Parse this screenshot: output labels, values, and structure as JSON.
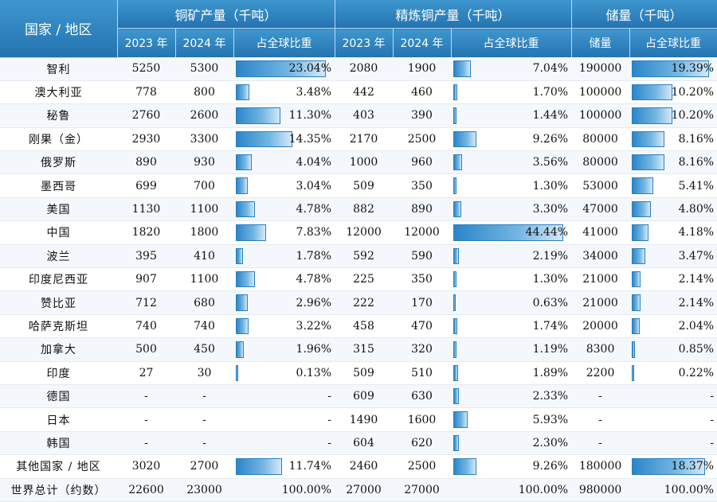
{
  "header": {
    "country": "国家 / 地区",
    "groups": [
      "铜矿产量（千吨）",
      "精炼铜产量（千吨）",
      "储量（千吨）"
    ],
    "sub": {
      "mine_2023": "2023 年",
      "mine_2024": "2024 年",
      "mine_share": "占全球比重",
      "ref_2023": "2023 年",
      "ref_2024": "2024 年",
      "ref_share": "占全球比重",
      "res": "储量",
      "res_share": "占全球比重"
    }
  },
  "colors": {
    "header": "#2373b0",
    "bar": "#2a86c9"
  },
  "rows": [
    {
      "country": "智利",
      "m23": "5250",
      "m24": "5300",
      "ms": "23.04%",
      "msv": 23.04,
      "r23": "2080",
      "r24": "1900",
      "rs": "7.04%",
      "rsv": 7.04,
      "res": "190000",
      "ress": "19.39%",
      "ressv": 19.39
    },
    {
      "country": "澳大利亚",
      "m23": "778",
      "m24": "800",
      "ms": "3.48%",
      "msv": 3.48,
      "r23": "442",
      "r24": "460",
      "rs": "1.70%",
      "rsv": 1.7,
      "res": "100000",
      "ress": "10.20%",
      "ressv": 10.2
    },
    {
      "country": "秘鲁",
      "m23": "2760",
      "m24": "2600",
      "ms": "11.30%",
      "msv": 11.3,
      "r23": "403",
      "r24": "390",
      "rs": "1.44%",
      "rsv": 1.44,
      "res": "100000",
      "ress": "10.20%",
      "ressv": 10.2
    },
    {
      "country": "刚果（金）",
      "m23": "2930",
      "m24": "3300",
      "ms": "14.35%",
      "msv": 14.35,
      "r23": "2170",
      "r24": "2500",
      "rs": "9.26%",
      "rsv": 9.26,
      "res": "80000",
      "ress": "8.16%",
      "ressv": 8.16
    },
    {
      "country": "俄罗斯",
      "m23": "890",
      "m24": "930",
      "ms": "4.04%",
      "msv": 4.04,
      "r23": "1000",
      "r24": "960",
      "rs": "3.56%",
      "rsv": 3.56,
      "res": "80000",
      "ress": "8.16%",
      "ressv": 8.16
    },
    {
      "country": "墨西哥",
      "m23": "699",
      "m24": "700",
      "ms": "3.04%",
      "msv": 3.04,
      "r23": "509",
      "r24": "350",
      "rs": "1.30%",
      "rsv": 1.3,
      "res": "53000",
      "ress": "5.41%",
      "ressv": 5.41
    },
    {
      "country": "美国",
      "m23": "1130",
      "m24": "1100",
      "ms": "4.78%",
      "msv": 4.78,
      "r23": "882",
      "r24": "890",
      "rs": "3.30%",
      "rsv": 3.3,
      "res": "47000",
      "ress": "4.80%",
      "ressv": 4.8
    },
    {
      "country": "中国",
      "m23": "1820",
      "m24": "1800",
      "ms": "7.83%",
      "msv": 7.83,
      "r23": "12000",
      "r24": "12000",
      "rs": "44.44%",
      "rsv": 44.44,
      "res": "41000",
      "ress": "4.18%",
      "ressv": 4.18
    },
    {
      "country": "波兰",
      "m23": "395",
      "m24": "410",
      "ms": "1.78%",
      "msv": 1.78,
      "r23": "592",
      "r24": "590",
      "rs": "2.19%",
      "rsv": 2.19,
      "res": "34000",
      "ress": "3.47%",
      "ressv": 3.47
    },
    {
      "country": "印度尼西亚",
      "m23": "907",
      "m24": "1100",
      "ms": "4.78%",
      "msv": 4.78,
      "r23": "225",
      "r24": "350",
      "rs": "1.30%",
      "rsv": 1.3,
      "res": "21000",
      "ress": "2.14%",
      "ressv": 2.14
    },
    {
      "country": "赞比亚",
      "m23": "712",
      "m24": "680",
      "ms": "2.96%",
      "msv": 2.96,
      "r23": "222",
      "r24": "170",
      "rs": "0.63%",
      "rsv": 0.63,
      "res": "21000",
      "ress": "2.14%",
      "ressv": 2.14
    },
    {
      "country": "哈萨克斯坦",
      "m23": "740",
      "m24": "740",
      "ms": "3.22%",
      "msv": 3.22,
      "r23": "458",
      "r24": "470",
      "rs": "1.74%",
      "rsv": 1.74,
      "res": "20000",
      "ress": "2.04%",
      "ressv": 2.04
    },
    {
      "country": "加拿大",
      "m23": "500",
      "m24": "450",
      "ms": "1.96%",
      "msv": 1.96,
      "r23": "315",
      "r24": "320",
      "rs": "1.19%",
      "rsv": 1.19,
      "res": "8300",
      "ress": "0.85%",
      "ressv": 0.85
    },
    {
      "country": "印度",
      "m23": "27",
      "m24": "30",
      "ms": "0.13%",
      "msv": 0.13,
      "r23": "509",
      "r24": "510",
      "rs": "1.89%",
      "rsv": 1.89,
      "res": "2200",
      "ress": "0.22%",
      "ressv": 0.22
    },
    {
      "country": "德国",
      "m23": "-",
      "m24": "-",
      "ms": "-",
      "msv": 0,
      "r23": "609",
      "r24": "630",
      "rs": "2.33%",
      "rsv": 2.33,
      "res": "-",
      "ress": "-",
      "ressv": 0
    },
    {
      "country": "日本",
      "m23": "-",
      "m24": "-",
      "ms": "-",
      "msv": 0,
      "r23": "1490",
      "r24": "1600",
      "rs": "5.93%",
      "rsv": 5.93,
      "res": "-",
      "ress": "-",
      "ressv": 0
    },
    {
      "country": "韩国",
      "m23": "-",
      "m24": "-",
      "ms": "-",
      "msv": 0,
      "r23": "604",
      "r24": "620",
      "rs": "2.30%",
      "rsv": 2.3,
      "res": "-",
      "ress": "-",
      "ressv": 0
    },
    {
      "country": "其他国家 / 地区",
      "m23": "3020",
      "m24": "2700",
      "ms": "11.74%",
      "msv": 11.74,
      "r23": "2460",
      "r24": "2500",
      "rs": "9.26%",
      "rsv": 9.26,
      "res": "180000",
      "ress": "18.37%",
      "ressv": 18.37
    },
    {
      "country": "世界总计（约数）",
      "m23": "22600",
      "m24": "23000",
      "ms": "100.00%",
      "msv": 0,
      "r23": "27000",
      "r24": "27000",
      "rs": "100.00%",
      "rsv": 0,
      "res": "980000",
      "ress": "100.00%",
      "ressv": 0
    }
  ]
}
